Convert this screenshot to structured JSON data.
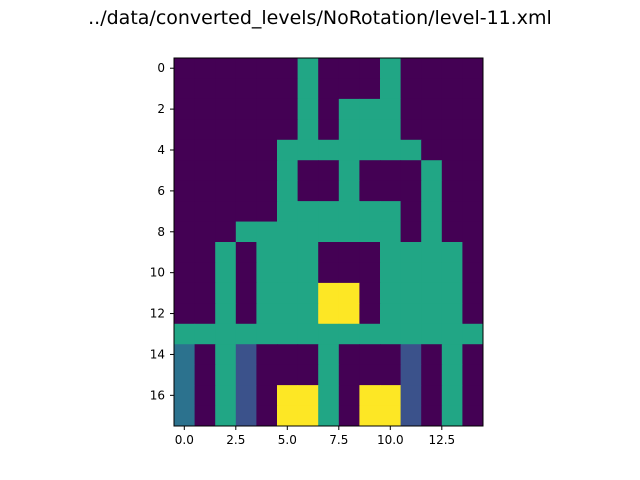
{
  "chart_data": {
    "type": "heatmap",
    "title": "../data/converted_levels/NoRotation/level-11.xml",
    "xlabel": "",
    "ylabel": "",
    "x_ticks": [
      0.0,
      2.5,
      5.0,
      7.5,
      10.0,
      12.5
    ],
    "x_tick_labels": [
      "0.0",
      "2.5",
      "5.0",
      "7.5",
      "10.0",
      "12.5"
    ],
    "y_ticks": [
      0,
      2,
      4,
      6,
      8,
      10,
      12,
      14,
      16
    ],
    "y_tick_labels": [
      "0",
      "2",
      "4",
      "6",
      "8",
      "10",
      "12",
      "14",
      "16"
    ],
    "xlim": [
      -0.5,
      14.5
    ],
    "ylim": [
      17.5,
      -0.5
    ],
    "colormap": {
      "0": "#440154",
      "1": "#3b528b",
      "2": "#2c728e",
      "3": "#21a685",
      "4": "#fde725"
    },
    "grid": [
      [
        0,
        0,
        0,
        0,
        0,
        0,
        3,
        0,
        0,
        0,
        3,
        0,
        0,
        0,
        0
      ],
      [
        0,
        0,
        0,
        0,
        0,
        0,
        3,
        0,
        0,
        0,
        3,
        0,
        0,
        0,
        0
      ],
      [
        0,
        0,
        0,
        0,
        0,
        0,
        3,
        0,
        3,
        3,
        3,
        0,
        0,
        0,
        0
      ],
      [
        0,
        0,
        0,
        0,
        0,
        0,
        3,
        0,
        3,
        3,
        3,
        0,
        0,
        0,
        0
      ],
      [
        0,
        0,
        0,
        0,
        0,
        3,
        3,
        3,
        3,
        3,
        3,
        3,
        0,
        0,
        0
      ],
      [
        0,
        0,
        0,
        0,
        0,
        3,
        0,
        0,
        3,
        0,
        0,
        0,
        3,
        0,
        0
      ],
      [
        0,
        0,
        0,
        0,
        0,
        3,
        0,
        0,
        3,
        0,
        0,
        0,
        3,
        0,
        0
      ],
      [
        0,
        0,
        0,
        0,
        0,
        3,
        3,
        3,
        3,
        3,
        3,
        0,
        3,
        0,
        0
      ],
      [
        0,
        0,
        0,
        3,
        3,
        3,
        3,
        3,
        3,
        3,
        3,
        0,
        3,
        0,
        0
      ],
      [
        0,
        0,
        3,
        0,
        3,
        3,
        3,
        0,
        0,
        0,
        3,
        3,
        3,
        3,
        0
      ],
      [
        0,
        0,
        3,
        0,
        3,
        3,
        3,
        0,
        0,
        0,
        3,
        3,
        3,
        3,
        0
      ],
      [
        0,
        0,
        3,
        0,
        3,
        3,
        3,
        4,
        4,
        0,
        3,
        3,
        3,
        3,
        0
      ],
      [
        0,
        0,
        3,
        0,
        3,
        3,
        3,
        4,
        4,
        0,
        3,
        3,
        3,
        3,
        0
      ],
      [
        3,
        3,
        3,
        3,
        3,
        3,
        3,
        3,
        3,
        3,
        3,
        3,
        3,
        3,
        3
      ],
      [
        2,
        0,
        3,
        1,
        0,
        0,
        0,
        3,
        0,
        0,
        0,
        1,
        0,
        3,
        0
      ],
      [
        2,
        0,
        3,
        1,
        0,
        0,
        0,
        3,
        0,
        0,
        0,
        1,
        0,
        3,
        0
      ],
      [
        2,
        0,
        3,
        1,
        0,
        4,
        4,
        3,
        0,
        4,
        4,
        1,
        0,
        3,
        0
      ],
      [
        2,
        0,
        3,
        1,
        0,
        4,
        4,
        3,
        0,
        4,
        4,
        1,
        0,
        3,
        0
      ]
    ]
  }
}
